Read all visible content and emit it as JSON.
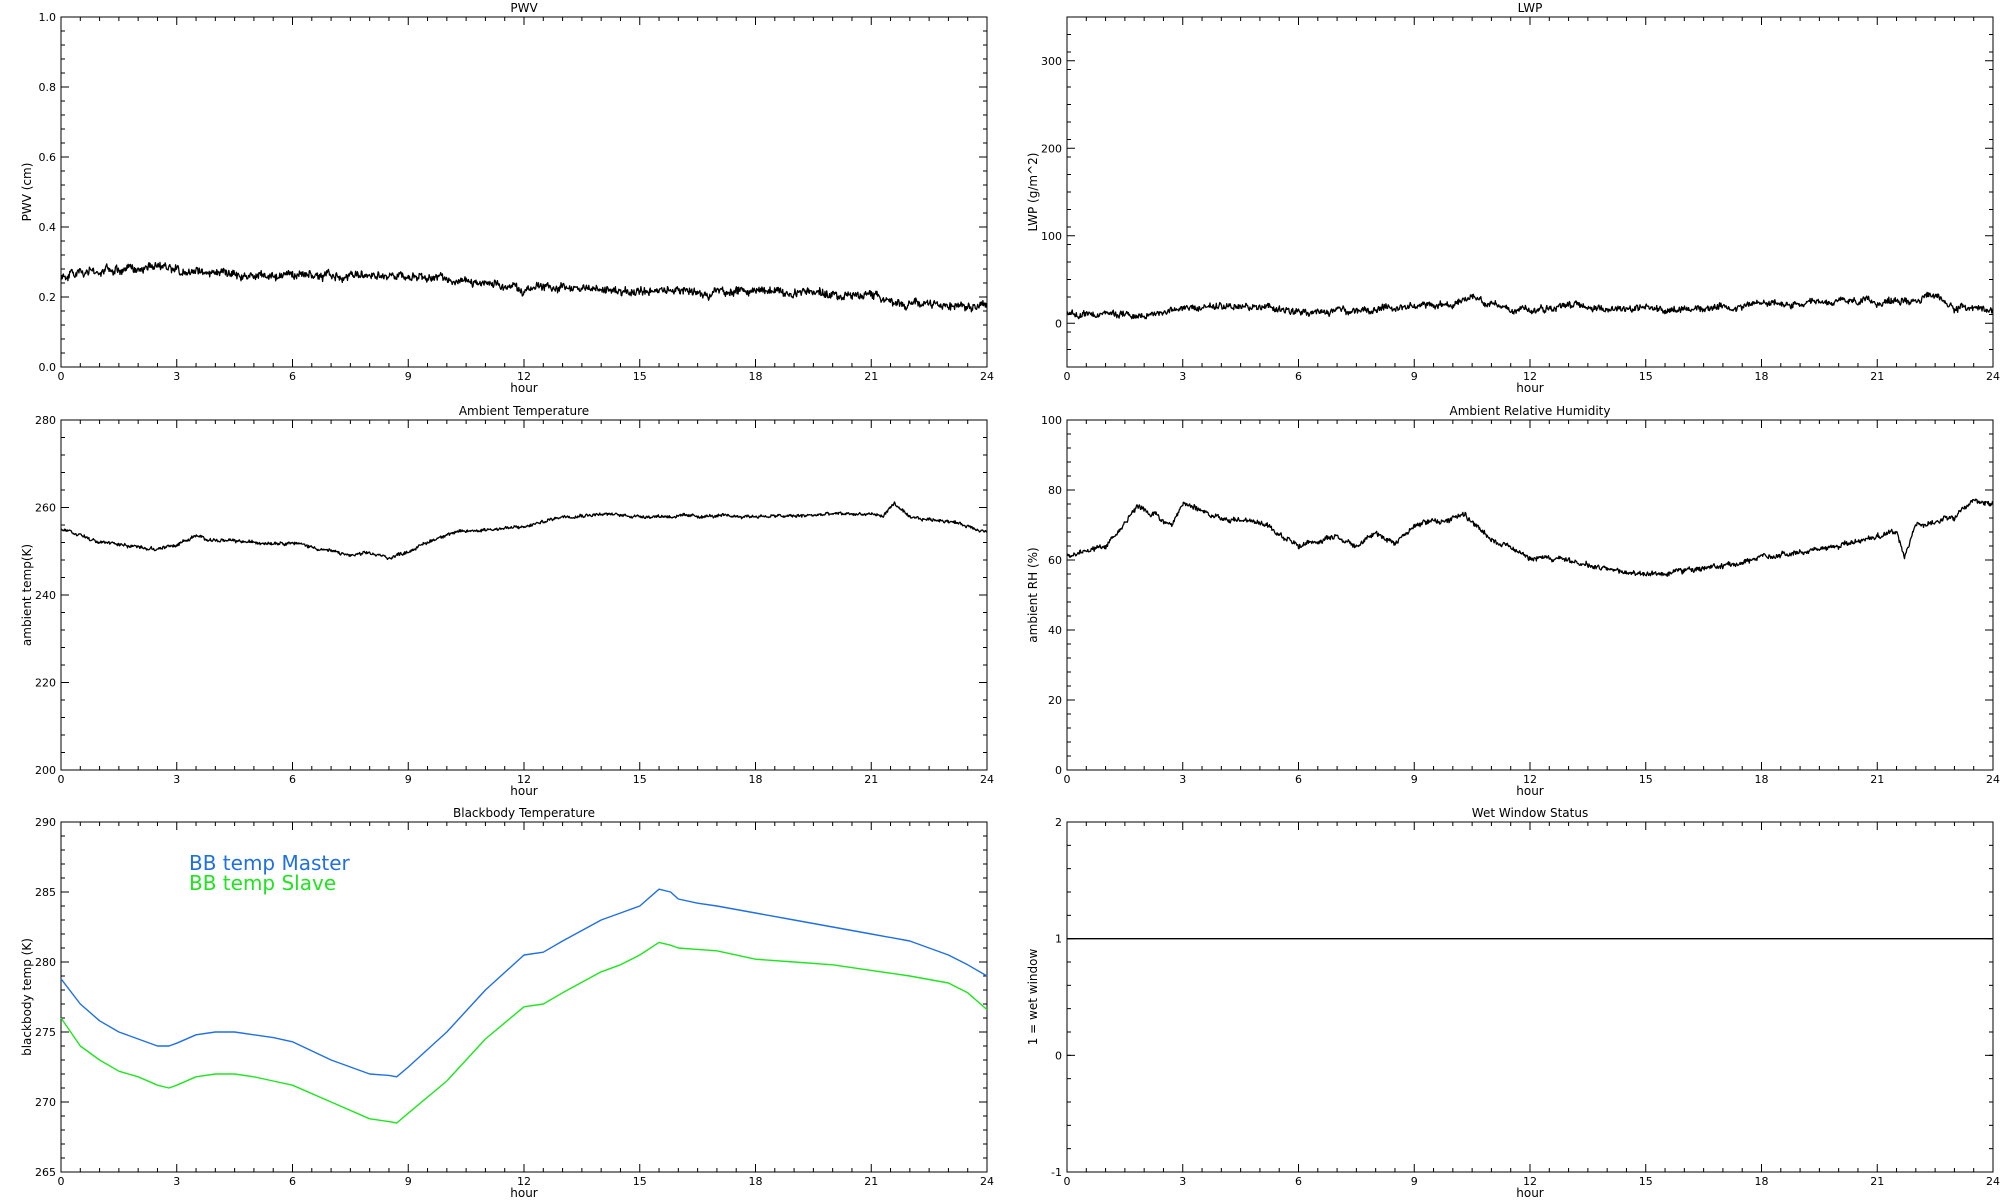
{
  "chart_data": [
    {
      "type": "line",
      "title": "PWV",
      "xlabel": "hour",
      "ylabel": "PWV (cm)",
      "xlim": [
        0,
        24
      ],
      "ylim": [
        0.0,
        1.0
      ],
      "xticks": [
        "0",
        "3",
        "6",
        "9",
        "12",
        "15",
        "18",
        "21",
        "24"
      ],
      "yticks": [
        "0.0",
        "0.2",
        "0.4",
        "0.6",
        "0.8",
        "1.0"
      ],
      "ytick_values": [
        0.0,
        0.2,
        0.4,
        0.6,
        0.8,
        1.0
      ],
      "noise": 0.008,
      "series": [
        {
          "color": "#000000",
          "x": [
            0,
            1,
            2,
            2.5,
            3,
            4,
            5,
            6,
            7,
            8,
            9,
            10,
            11,
            12,
            13,
            14,
            15,
            16,
            17,
            18,
            19,
            20,
            21,
            21.7,
            22,
            23,
            24
          ],
          "y": [
            0.26,
            0.27,
            0.28,
            0.29,
            0.28,
            0.27,
            0.26,
            0.265,
            0.26,
            0.265,
            0.26,
            0.255,
            0.24,
            0.22,
            0.23,
            0.22,
            0.215,
            0.22,
            0.21,
            0.22,
            0.215,
            0.21,
            0.2,
            0.19,
            0.18,
            0.18,
            0.17
          ]
        }
      ]
    },
    {
      "type": "line",
      "title": "LWP",
      "xlabel": "hour",
      "ylabel": "LWP (g/m^2)",
      "xlim": [
        0,
        24
      ],
      "ylim": [
        -50,
        350
      ],
      "xticks": [
        "0",
        "3",
        "6",
        "9",
        "12",
        "15",
        "18",
        "21",
        "24"
      ],
      "yticks": [
        "0",
        "100",
        "200",
        "300"
      ],
      "ytick_values": [
        0,
        100,
        200,
        300
      ],
      "noise": 2.5,
      "series": [
        {
          "color": "#000000",
          "x": [
            0,
            1,
            2,
            3,
            4,
            5,
            6,
            7,
            8,
            9,
            10,
            10.5,
            11,
            12,
            13,
            14,
            15,
            16,
            17,
            18,
            19,
            20,
            21,
            22,
            22.5,
            23,
            24
          ],
          "y": [
            10,
            10,
            9,
            17,
            19,
            18,
            12,
            13,
            14,
            19,
            22,
            30,
            21,
            15,
            22,
            16,
            17,
            16,
            18,
            23,
            20,
            25,
            24,
            27,
            32,
            18,
            17
          ]
        }
      ]
    },
    {
      "type": "line",
      "title": "Ambient Temperature",
      "xlabel": "hour",
      "ylabel": "ambient temp(K)",
      "xlim": [
        0,
        24
      ],
      "ylim": [
        200,
        280
      ],
      "xticks": [
        "0",
        "3",
        "6",
        "9",
        "12",
        "15",
        "18",
        "21",
        "24"
      ],
      "yticks": [
        "200",
        "220",
        "240",
        "260",
        "280"
      ],
      "ytick_values": [
        200,
        220,
        240,
        260,
        280
      ],
      "noise": 0.25,
      "series": [
        {
          "color": "#000000",
          "x": [
            0,
            1,
            2,
            2.5,
            3,
            3.5,
            4,
            5,
            6,
            7,
            7.5,
            8,
            8.5,
            9,
            10,
            11,
            12,
            13,
            14,
            15,
            16,
            17,
            18,
            19,
            20,
            21,
            21.3,
            21.6,
            22,
            23,
            24
          ],
          "y": [
            255,
            252,
            251,
            250.5,
            251.5,
            253.5,
            252.5,
            252,
            252,
            250,
            249,
            249.5,
            248.5,
            250,
            254,
            255,
            255.5,
            258,
            258.5,
            258,
            258,
            258,
            258,
            258,
            258.5,
            258.5,
            258,
            261,
            257.5,
            257,
            254.5
          ]
        }
      ]
    },
    {
      "type": "line",
      "title": "Ambient Relative Humidity",
      "xlabel": "hour",
      "ylabel": "ambient RH (%)",
      "xlim": [
        0,
        24
      ],
      "ylim": [
        0,
        100
      ],
      "xticks": [
        "0",
        "3",
        "6",
        "9",
        "12",
        "15",
        "18",
        "21",
        "24"
      ],
      "yticks": [
        "0",
        "20",
        "40",
        "60",
        "80",
        "100"
      ],
      "ytick_values": [
        0,
        20,
        40,
        60,
        80,
        100
      ],
      "noise": 0.5,
      "series": [
        {
          "color": "#000000",
          "x": [
            0,
            0.5,
            1,
            1.5,
            1.8,
            2.3,
            2.7,
            3,
            3.5,
            4,
            5,
            6,
            7,
            7.5,
            8,
            8.5,
            9,
            9.5,
            10,
            10.3,
            11,
            12,
            13,
            14,
            15,
            15.5,
            16,
            17,
            18,
            19,
            20,
            21,
            21.5,
            21.7,
            22,
            23,
            23.5,
            24
          ],
          "y": [
            61,
            63,
            64,
            70,
            75,
            73,
            70,
            76,
            74,
            72,
            71,
            64,
            67,
            64,
            68,
            64,
            70,
            71,
            72,
            73,
            66,
            61,
            60,
            57,
            56,
            56,
            57,
            58,
            61,
            62,
            64,
            67,
            68,
            60,
            70,
            72,
            77,
            76
          ]
        }
      ]
    },
    {
      "type": "line",
      "title": "Blackbody Temperature",
      "xlabel": "hour",
      "ylabel": "blackbody temp (K)",
      "xlim": [
        0,
        24
      ],
      "ylim": [
        265,
        290
      ],
      "xticks": [
        "0",
        "3",
        "6",
        "9",
        "12",
        "15",
        "18",
        "21",
        "24"
      ],
      "yticks": [
        "265",
        "270",
        "275",
        "280",
        "285",
        "290"
      ],
      "ytick_values": [
        265,
        270,
        275,
        280,
        285,
        290
      ],
      "noise": 0,
      "legend": {
        "placement": "top-left"
      },
      "series": [
        {
          "name": "BB temp Master",
          "color": "#1f6fe6",
          "x": [
            0,
            0.5,
            1,
            1.5,
            2,
            2.5,
            2.8,
            3,
            3.5,
            4,
            4.5,
            5,
            5.5,
            6,
            7,
            8,
            8.5,
            8.7,
            9,
            10,
            11,
            12,
            12.5,
            13,
            14,
            14.5,
            15,
            15.5,
            15.8,
            16,
            16.5,
            17,
            18,
            19,
            20,
            21,
            22,
            23,
            23.5,
            24
          ],
          "y": [
            278.8,
            277,
            275.8,
            275,
            274.5,
            274,
            274,
            274.2,
            274.8,
            275,
            275,
            274.8,
            274.6,
            274.3,
            273,
            272,
            271.9,
            271.8,
            272.5,
            275,
            278,
            280.5,
            280.7,
            281.5,
            283,
            283.5,
            284,
            285.2,
            285,
            284.5,
            284.2,
            284,
            283.5,
            283,
            282.5,
            282,
            281.5,
            280.5,
            279.8,
            279
          ]
        },
        {
          "name": "BB temp Slave",
          "color": "#1ee61e",
          "x": [
            0,
            0.5,
            1,
            1.5,
            2,
            2.5,
            2.8,
            3,
            3.5,
            4,
            4.5,
            5,
            5.5,
            6,
            7,
            8,
            8.5,
            8.7,
            9,
            10,
            11,
            12,
            12.5,
            13,
            14,
            14.5,
            15,
            15.5,
            15.8,
            16,
            16.5,
            17,
            18,
            19,
            20,
            21,
            22,
            23,
            23.5,
            24
          ],
          "y": [
            276,
            274,
            273,
            272.2,
            271.8,
            271.2,
            271,
            271.2,
            271.8,
            272,
            272,
            271.8,
            271.5,
            271.2,
            270,
            268.8,
            268.6,
            268.5,
            269.2,
            271.5,
            274.5,
            276.8,
            277,
            277.8,
            279.3,
            279.8,
            280.5,
            281.4,
            281.2,
            281,
            280.9,
            280.8,
            280.2,
            280,
            279.8,
            279.4,
            279,
            278.5,
            277.8,
            276.6
          ]
        }
      ]
    },
    {
      "type": "line",
      "title": "Wet Window Status",
      "xlabel": "hour",
      "ylabel": "1 = wet window",
      "xlim": [
        0,
        24
      ],
      "ylim": [
        -1,
        2
      ],
      "xticks": [
        "0",
        "3",
        "6",
        "9",
        "12",
        "15",
        "18",
        "21",
        "24"
      ],
      "yticks": [
        "-1",
        "0",
        "1",
        "2"
      ],
      "ytick_values": [
        -1,
        0,
        1,
        2
      ],
      "noise": 0,
      "series": [
        {
          "color": "#000000",
          "x": [
            0,
            24
          ],
          "y": [
            1,
            1
          ]
        }
      ]
    }
  ]
}
